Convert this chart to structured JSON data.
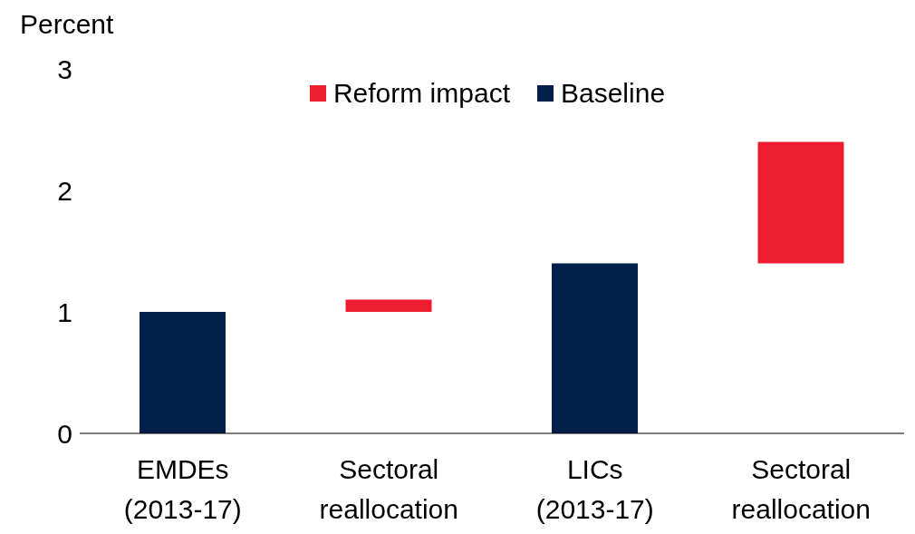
{
  "chart_data": {
    "type": "bar",
    "ylabel": "Percent",
    "categories": [
      "EMDEs (2013-17)",
      "Sectoral reallocation",
      "LICs (2013-17)",
      "Sectoral reallocation"
    ],
    "series": [
      {
        "name": "Reform impact",
        "color": "#ed1c2e",
        "values": [
          null,
          0.1,
          null,
          1.0
        ],
        "base": [
          null,
          1.0,
          null,
          1.4
        ]
      },
      {
        "name": "Baseline",
        "color": "#00204a",
        "values": [
          1.0,
          null,
          1.4,
          null
        ]
      }
    ],
    "ylim": [
      0,
      3
    ],
    "yticks": [
      0,
      1,
      2,
      3
    ],
    "legend": "top"
  }
}
